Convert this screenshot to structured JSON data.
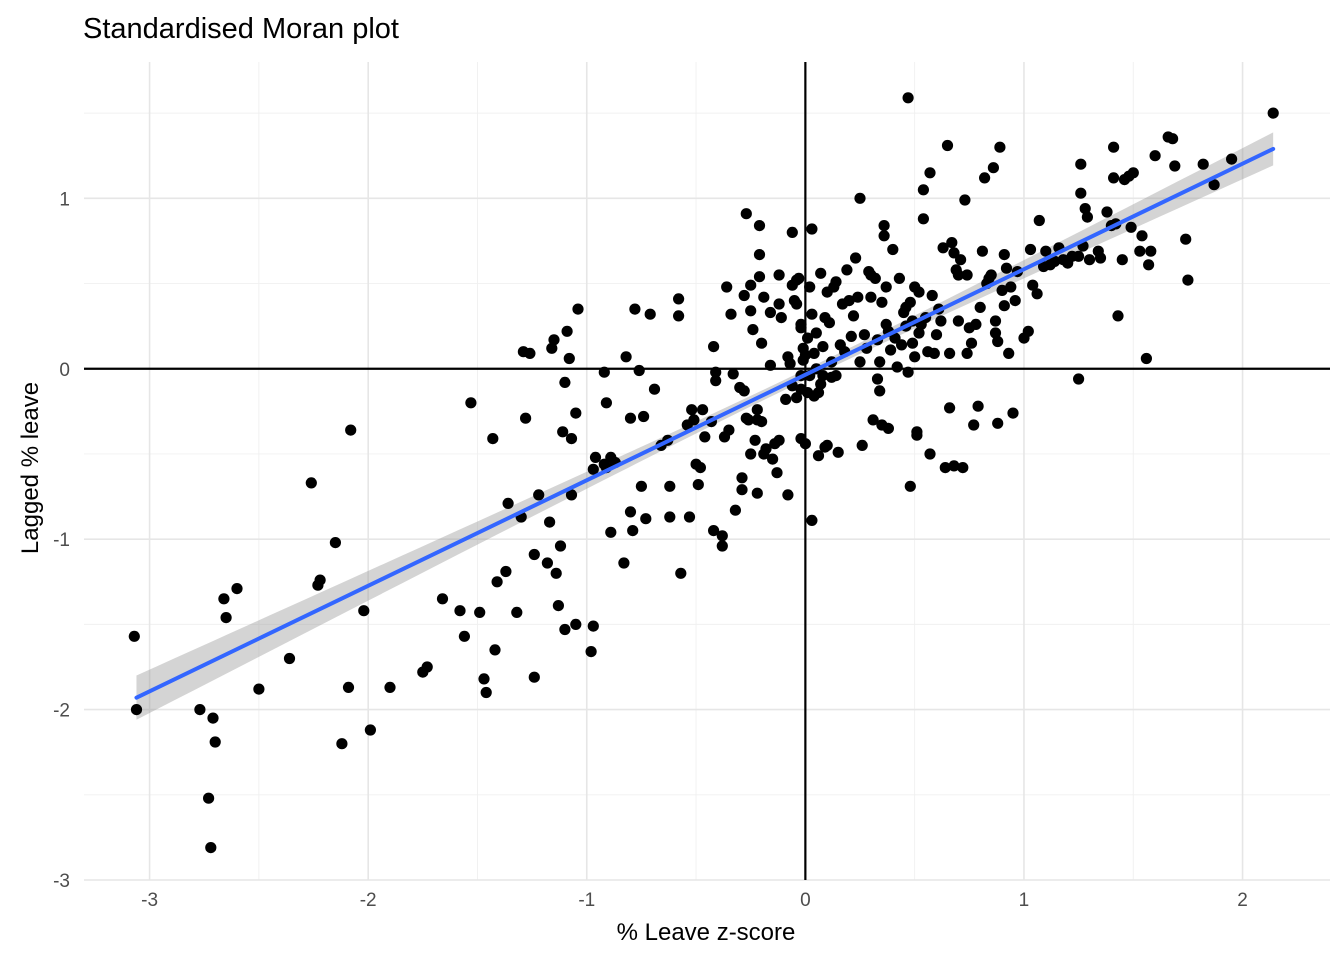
{
  "chart_data": {
    "type": "scatter",
    "title": "Standardised Moran plot",
    "xlabel": "% Leave z-score",
    "ylabel": "Lagged % leave",
    "xlim": [
      -3.3,
      2.4
    ],
    "ylim": [
      -3.0,
      1.8
    ],
    "x_ticks": [
      -3,
      -2,
      -1,
      0,
      1,
      2
    ],
    "y_ticks": [
      -3,
      -2,
      -1,
      0,
      1
    ],
    "x_tick_labels": [
      "-3",
      "-2",
      "-1",
      "0",
      "1",
      "2"
    ],
    "y_tick_labels": [
      "-3",
      "-2",
      "-1",
      "0",
      "1"
    ],
    "grid": true,
    "reference_lines": {
      "x": 0,
      "y": 0
    },
    "point_color": "#000000",
    "fit_color": "#3366ff",
    "band_color": "#999999",
    "fit": {
      "method": "linear",
      "start": [
        -3.06,
        -1.93
      ],
      "end": [
        2.14,
        1.29
      ],
      "band_half_width_ends": 0.13,
      "band_half_width_center": 0.03,
      "band_center_x": -0.05
    },
    "points": [
      [
        -3.07,
        -1.57
      ],
      [
        -3.06,
        -2.0
      ],
      [
        -2.77,
        -2.0
      ],
      [
        -2.73,
        -2.52
      ],
      [
        -2.72,
        -2.81
      ],
      [
        -2.71,
        -2.05
      ],
      [
        -2.7,
        -2.19
      ],
      [
        -2.66,
        -1.35
      ],
      [
        -2.65,
        -1.46
      ],
      [
        -2.6,
        -1.29
      ],
      [
        -2.5,
        -1.88
      ],
      [
        -2.36,
        -1.7
      ],
      [
        -2.26,
        -0.67
      ],
      [
        -2.23,
        -1.27
      ],
      [
        -2.22,
        -1.24
      ],
      [
        -2.15,
        -1.02
      ],
      [
        -2.12,
        -2.2
      ],
      [
        -2.09,
        -1.87
      ],
      [
        -2.08,
        -0.36
      ],
      [
        -2.02,
        -1.42
      ],
      [
        -1.99,
        -2.12
      ],
      [
        -1.9,
        -1.87
      ],
      [
        -1.75,
        -1.78
      ],
      [
        -1.73,
        -1.75
      ],
      [
        -1.66,
        -1.35
      ],
      [
        -1.58,
        -1.42
      ],
      [
        -1.56,
        -1.57
      ],
      [
        -1.53,
        -0.2
      ],
      [
        -1.49,
        -1.43
      ],
      [
        -1.47,
        -1.82
      ],
      [
        -1.46,
        -1.9
      ],
      [
        -1.43,
        -0.41
      ],
      [
        -1.42,
        -1.65
      ],
      [
        -1.41,
        -1.25
      ],
      [
        -1.37,
        -1.19
      ],
      [
        -1.36,
        -0.79
      ],
      [
        -1.32,
        -1.43
      ],
      [
        -1.3,
        -0.87
      ],
      [
        -1.29,
        0.1
      ],
      [
        -1.28,
        -0.29
      ],
      [
        -1.26,
        0.09
      ],
      [
        -1.24,
        -1.09
      ],
      [
        -1.24,
        -1.81
      ],
      [
        -1.22,
        -0.74
      ],
      [
        -1.18,
        -1.14
      ],
      [
        -1.17,
        -0.9
      ],
      [
        -1.16,
        0.12
      ],
      [
        -1.15,
        0.17
      ],
      [
        -1.14,
        -1.2
      ],
      [
        -1.13,
        -1.39
      ],
      [
        -1.12,
        -1.04
      ],
      [
        -1.11,
        -0.37
      ],
      [
        -1.1,
        -1.53
      ],
      [
        -1.1,
        -0.08
      ],
      [
        -1.09,
        0.22
      ],
      [
        -1.08,
        0.06
      ],
      [
        -1.07,
        -0.74
      ],
      [
        -1.07,
        -0.41
      ],
      [
        -1.05,
        -1.5
      ],
      [
        -1.05,
        -0.26
      ],
      [
        -1.04,
        0.35
      ],
      [
        -0.98,
        -1.66
      ],
      [
        -0.97,
        -1.51
      ],
      [
        -0.97,
        -0.59
      ],
      [
        -0.96,
        -0.52
      ],
      [
        -0.92,
        -0.56
      ],
      [
        -0.92,
        -0.02
      ],
      [
        -0.91,
        -0.2
      ],
      [
        -0.91,
        -0.58
      ],
      [
        -0.89,
        -0.96
      ],
      [
        -0.89,
        -0.52
      ],
      [
        -0.87,
        -0.55
      ],
      [
        -0.83,
        -1.14
      ],
      [
        -0.82,
        0.07
      ],
      [
        -0.8,
        -0.29
      ],
      [
        -0.8,
        -0.84
      ],
      [
        -0.79,
        -0.95
      ],
      [
        -0.78,
        0.35
      ],
      [
        -0.76,
        -0.01
      ],
      [
        -0.75,
        -0.69
      ],
      [
        -0.74,
        -0.28
      ],
      [
        -0.73,
        -0.88
      ],
      [
        -0.71,
        0.32
      ],
      [
        -0.69,
        -0.12
      ],
      [
        -0.66,
        -0.45
      ],
      [
        -0.63,
        -0.42
      ],
      [
        -0.62,
        -0.69
      ],
      [
        -0.62,
        -0.87
      ],
      [
        -0.58,
        0.31
      ],
      [
        -0.58,
        0.41
      ],
      [
        -0.57,
        -1.2
      ],
      [
        -0.54,
        -0.33
      ],
      [
        -0.53,
        -0.87
      ],
      [
        -0.52,
        -0.24
      ],
      [
        -0.51,
        -0.3
      ],
      [
        -0.5,
        -0.56
      ],
      [
        -0.49,
        -0.68
      ],
      [
        -0.48,
        -0.58
      ],
      [
        -0.47,
        -0.24
      ],
      [
        -0.46,
        -0.4
      ],
      [
        -0.43,
        -0.31
      ],
      [
        -0.42,
        -0.95
      ],
      [
        -0.42,
        0.13
      ],
      [
        -0.41,
        -0.02
      ],
      [
        -0.41,
        -0.07
      ],
      [
        -0.38,
        -0.98
      ],
      [
        -0.38,
        -1.04
      ],
      [
        -0.37,
        -0.4
      ],
      [
        -0.36,
        0.48
      ],
      [
        -0.35,
        -0.36
      ],
      [
        -0.34,
        0.32
      ],
      [
        -0.33,
        -0.03
      ],
      [
        -0.32,
        -0.83
      ],
      [
        -0.3,
        -0.11
      ],
      [
        -0.29,
        -0.64
      ],
      [
        -0.29,
        -0.71
      ],
      [
        -0.28,
        -0.13
      ],
      [
        -0.28,
        0.43
      ],
      [
        -0.27,
        0.91
      ],
      [
        -0.27,
        -0.29
      ],
      [
        -0.26,
        -0.3
      ],
      [
        -0.25,
        -0.5
      ],
      [
        -0.25,
        0.49
      ],
      [
        -0.25,
        0.34
      ],
      [
        -0.24,
        0.23
      ],
      [
        -0.23,
        -0.42
      ],
      [
        -0.22,
        -0.24
      ],
      [
        -0.22,
        -0.3
      ],
      [
        -0.22,
        -0.73
      ],
      [
        -0.21,
        0.67
      ],
      [
        -0.21,
        0.54
      ],
      [
        -0.21,
        0.84
      ],
      [
        -0.2,
        -0.31
      ],
      [
        -0.2,
        0.15
      ],
      [
        -0.19,
        -0.5
      ],
      [
        -0.19,
        0.42
      ],
      [
        -0.18,
        -0.47
      ],
      [
        -0.16,
        0.33
      ],
      [
        -0.16,
        0.02
      ],
      [
        -0.15,
        -0.53
      ],
      [
        -0.14,
        -0.44
      ],
      [
        -0.13,
        -0.61
      ],
      [
        -0.12,
        0.55
      ],
      [
        -0.12,
        -0.42
      ],
      [
        -0.12,
        0.38
      ],
      [
        -0.11,
        0.3
      ],
      [
        -0.09,
        -0.18
      ],
      [
        -0.08,
        -0.74
      ],
      [
        -0.08,
        0.07
      ],
      [
        -0.07,
        0.03
      ],
      [
        -0.06,
        0.49
      ],
      [
        -0.06,
        -0.1
      ],
      [
        -0.06,
        0.8
      ],
      [
        -0.05,
        0.4
      ],
      [
        -0.04,
        0.38
      ],
      [
        -0.04,
        0.52
      ],
      [
        -0.04,
        -0.17
      ],
      [
        -0.03,
        0.53
      ],
      [
        -0.02,
        0.24
      ],
      [
        -0.02,
        0.26
      ],
      [
        -0.02,
        -0.41
      ],
      [
        -0.02,
        -0.04
      ],
      [
        -0.02,
        -0.12
      ],
      [
        -0.01,
        0.12
      ],
      [
        -0.01,
        0.05
      ],
      [
        0.0,
        -0.44
      ],
      [
        0.0,
        0.08
      ],
      [
        0.01,
        0.18
      ],
      [
        0.01,
        -0.14
      ],
      [
        0.02,
        -0.04
      ],
      [
        0.02,
        0.48
      ],
      [
        0.03,
        0.82
      ],
      [
        0.03,
        0.32
      ],
      [
        0.03,
        -0.89
      ],
      [
        0.04,
        -0.16
      ],
      [
        0.04,
        0.09
      ],
      [
        0.05,
        0.0
      ],
      [
        0.05,
        0.21
      ],
      [
        0.06,
        -0.14
      ],
      [
        0.06,
        -0.51
      ],
      [
        0.07,
        0.56
      ],
      [
        0.07,
        -0.09
      ],
      [
        0.08,
        0.13
      ],
      [
        0.08,
        -0.04
      ],
      [
        0.09,
        0.3
      ],
      [
        0.09,
        -0.46
      ],
      [
        0.1,
        -0.45
      ],
      [
        0.1,
        0.45
      ],
      [
        0.11,
        0.27
      ],
      [
        0.12,
        0.04
      ],
      [
        0.12,
        -0.05
      ],
      [
        0.13,
        0.48
      ],
      [
        0.14,
        -0.04
      ],
      [
        0.14,
        0.51
      ],
      [
        0.15,
        -0.49
      ],
      [
        0.16,
        0.14
      ],
      [
        0.17,
        0.38
      ],
      [
        0.18,
        0.1
      ],
      [
        0.19,
        0.58
      ],
      [
        0.2,
        0.4
      ],
      [
        0.21,
        0.19
      ],
      [
        0.22,
        0.31
      ],
      [
        0.23,
        0.65
      ],
      [
        0.24,
        0.42
      ],
      [
        0.25,
        0.04
      ],
      [
        0.25,
        1.0
      ],
      [
        0.26,
        -0.45
      ],
      [
        0.27,
        0.2
      ],
      [
        0.28,
        0.12
      ],
      [
        0.29,
        0.57
      ],
      [
        0.3,
        0.42
      ],
      [
        0.3,
        0.55
      ],
      [
        0.31,
        -0.3
      ],
      [
        0.32,
        0.53
      ],
      [
        0.33,
        0.17
      ],
      [
        0.33,
        -0.06
      ],
      [
        0.34,
        -0.13
      ],
      [
        0.34,
        0.04
      ],
      [
        0.35,
        0.39
      ],
      [
        0.35,
        -0.33
      ],
      [
        0.36,
        0.84
      ],
      [
        0.36,
        0.78
      ],
      [
        0.37,
        0.26
      ],
      [
        0.37,
        0.48
      ],
      [
        0.38,
        0.22
      ],
      [
        0.38,
        -0.35
      ],
      [
        0.39,
        0.11
      ],
      [
        0.4,
        0.7
      ],
      [
        0.41,
        0.18
      ],
      [
        0.42,
        0.01
      ],
      [
        0.43,
        0.53
      ],
      [
        0.44,
        0.14
      ],
      [
        0.45,
        0.33
      ],
      [
        0.46,
        0.25
      ],
      [
        0.46,
        0.36
      ],
      [
        0.47,
        -0.02
      ],
      [
        0.47,
        1.59
      ],
      [
        0.48,
        -0.69
      ],
      [
        0.48,
        0.39
      ],
      [
        0.49,
        0.28
      ],
      [
        0.49,
        0.15
      ],
      [
        0.5,
        0.48
      ],
      [
        0.5,
        0.07
      ],
      [
        0.51,
        -0.37
      ],
      [
        0.51,
        -0.39
      ],
      [
        0.52,
        0.45
      ],
      [
        0.52,
        0.21
      ],
      [
        0.53,
        0.26
      ],
      [
        0.54,
        0.88
      ],
      [
        0.54,
        1.05
      ],
      [
        0.55,
        0.3
      ],
      [
        0.56,
        0.1
      ],
      [
        0.57,
        1.15
      ],
      [
        0.57,
        -0.5
      ],
      [
        0.58,
        0.43
      ],
      [
        0.59,
        0.09
      ],
      [
        0.6,
        0.2
      ],
      [
        0.61,
        0.35
      ],
      [
        0.62,
        0.28
      ],
      [
        0.63,
        0.71
      ],
      [
        0.64,
        -0.58
      ],
      [
        0.65,
        1.31
      ],
      [
        0.66,
        -0.23
      ],
      [
        0.66,
        0.09
      ],
      [
        0.67,
        0.74
      ],
      [
        0.68,
        0.68
      ],
      [
        0.68,
        -0.57
      ],
      [
        0.69,
        0.58
      ],
      [
        0.7,
        0.55
      ],
      [
        0.7,
        0.28
      ],
      [
        0.71,
        0.64
      ],
      [
        0.72,
        -0.58
      ],
      [
        0.73,
        0.99
      ],
      [
        0.74,
        0.09
      ],
      [
        0.74,
        0.55
      ],
      [
        0.75,
        0.24
      ],
      [
        0.76,
        0.15
      ],
      [
        0.77,
        -0.33
      ],
      [
        0.78,
        0.26
      ],
      [
        0.79,
        -0.22
      ],
      [
        0.8,
        0.36
      ],
      [
        0.81,
        0.69
      ],
      [
        0.82,
        1.12
      ],
      [
        0.83,
        0.5
      ],
      [
        0.84,
        0.53
      ],
      [
        0.85,
        0.55
      ],
      [
        0.86,
        1.18
      ],
      [
        0.87,
        0.28
      ],
      [
        0.87,
        0.21
      ],
      [
        0.88,
        -0.32
      ],
      [
        0.88,
        0.16
      ],
      [
        0.89,
        1.3
      ],
      [
        0.9,
        0.46
      ],
      [
        0.91,
        0.67
      ],
      [
        0.91,
        0.37
      ],
      [
        0.92,
        0.59
      ],
      [
        0.93,
        0.09
      ],
      [
        0.94,
        0.48
      ],
      [
        0.95,
        -0.26
      ],
      [
        0.96,
        0.4
      ],
      [
        0.97,
        0.57
      ],
      [
        1.0,
        0.18
      ],
      [
        1.02,
        0.22
      ],
      [
        1.03,
        0.7
      ],
      [
        1.04,
        0.49
      ],
      [
        1.06,
        0.44
      ],
      [
        1.07,
        0.87
      ],
      [
        1.09,
        0.6
      ],
      [
        1.1,
        0.69
      ],
      [
        1.12,
        0.61
      ],
      [
        1.14,
        0.63
      ],
      [
        1.16,
        0.71
      ],
      [
        1.18,
        0.64
      ],
      [
        1.2,
        0.62
      ],
      [
        1.22,
        0.66
      ],
      [
        1.25,
        0.66
      ],
      [
        1.25,
        -0.06
      ],
      [
        1.26,
        1.2
      ],
      [
        1.26,
        1.03
      ],
      [
        1.27,
        0.72
      ],
      [
        1.28,
        0.94
      ],
      [
        1.29,
        0.89
      ],
      [
        1.3,
        0.64
      ],
      [
        1.34,
        0.69
      ],
      [
        1.35,
        0.65
      ],
      [
        1.38,
        0.92
      ],
      [
        1.4,
        0.84
      ],
      [
        1.41,
        1.3
      ],
      [
        1.41,
        1.12
      ],
      [
        1.42,
        0.85
      ],
      [
        1.43,
        0.31
      ],
      [
        1.45,
        0.64
      ],
      [
        1.46,
        1.11
      ],
      [
        1.48,
        1.13
      ],
      [
        1.49,
        0.83
      ],
      [
        1.5,
        1.15
      ],
      [
        1.53,
        0.69
      ],
      [
        1.54,
        0.78
      ],
      [
        1.56,
        0.06
      ],
      [
        1.57,
        0.61
      ],
      [
        1.58,
        0.69
      ],
      [
        1.6,
        1.25
      ],
      [
        1.66,
        1.36
      ],
      [
        1.68,
        1.35
      ],
      [
        1.69,
        1.19
      ],
      [
        1.74,
        0.76
      ],
      [
        1.75,
        0.52
      ],
      [
        1.82,
        1.2
      ],
      [
        1.87,
        1.08
      ],
      [
        1.95,
        1.23
      ],
      [
        2.14,
        1.5
      ]
    ]
  }
}
